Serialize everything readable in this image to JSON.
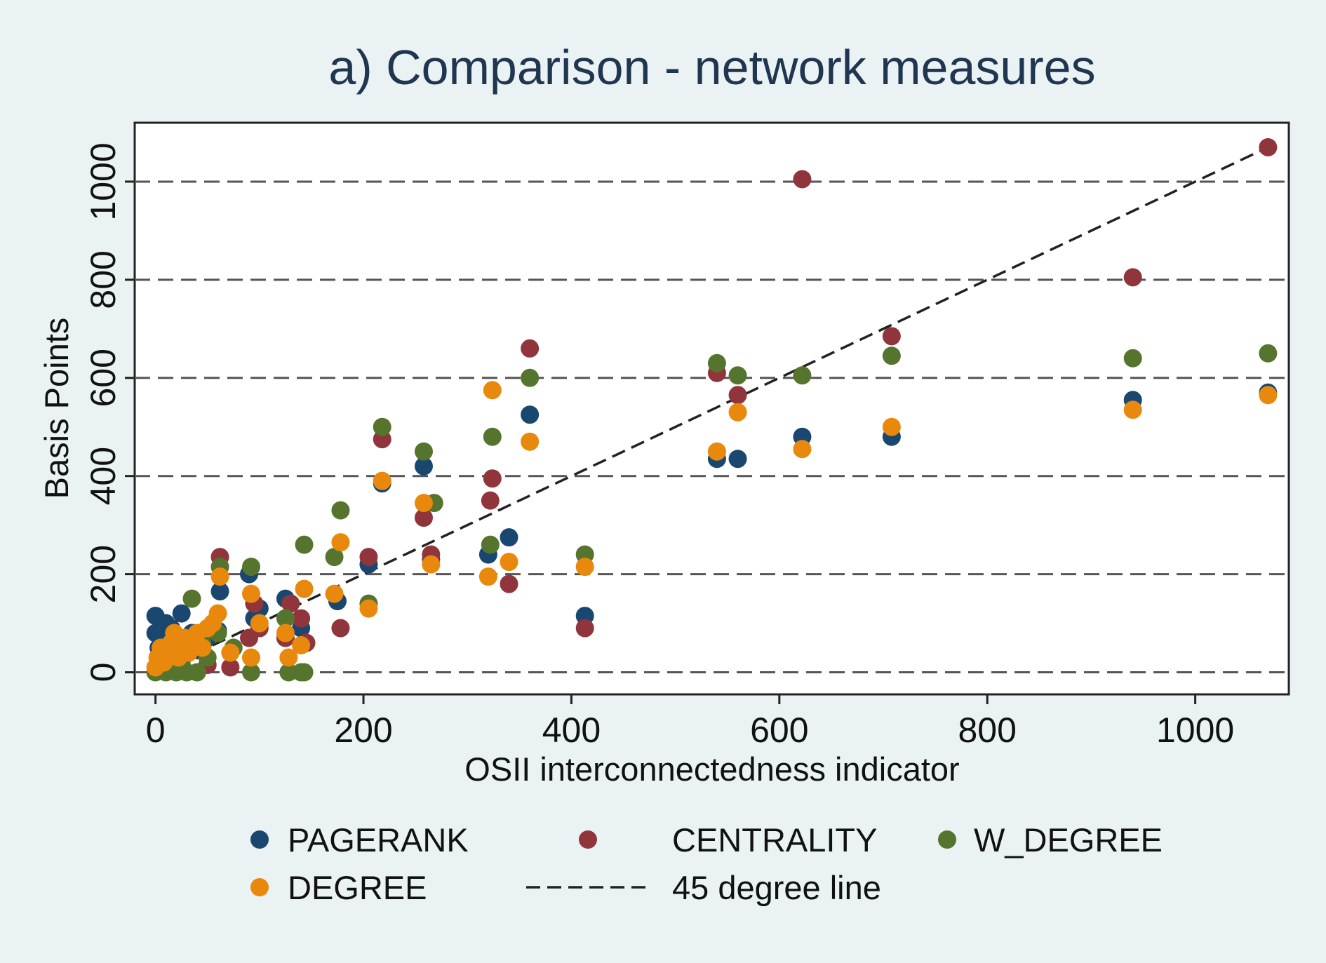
{
  "chart_data": {
    "type": "scatter",
    "title": "a) Comparison - network measures",
    "xlabel": "OSII interconnectedness indicator",
    "ylabel": "Basis Points",
    "xlim": [
      -20,
      1090
    ],
    "ylim": [
      -45,
      1120
    ],
    "xticks": [
      0,
      200,
      400,
      600,
      800,
      1000
    ],
    "yticks": [
      0,
      200,
      400,
      600,
      800,
      1000
    ],
    "grid": "horizontal dashed",
    "legend_position": "bottom",
    "reference_line": {
      "name": "45 degree line",
      "x": [
        0,
        1070
      ],
      "y": [
        0,
        1070
      ]
    },
    "series": [
      {
        "name": "PAGERANK",
        "color": "#1a476f",
        "points": [
          [
            0,
            115
          ],
          [
            0,
            80
          ],
          [
            3,
            50
          ],
          [
            5,
            30
          ],
          [
            8,
            60
          ],
          [
            10,
            100
          ],
          [
            15,
            90
          ],
          [
            20,
            70
          ],
          [
            25,
            120
          ],
          [
            30,
            60
          ],
          [
            35,
            80
          ],
          [
            40,
            45
          ],
          [
            45,
            55
          ],
          [
            50,
            70
          ],
          [
            60,
            85
          ],
          [
            62,
            165
          ],
          [
            90,
            200
          ],
          [
            95,
            110
          ],
          [
            100,
            130
          ],
          [
            125,
            150
          ],
          [
            140,
            90
          ],
          [
            175,
            145
          ],
          [
            205,
            220
          ],
          [
            218,
            385
          ],
          [
            258,
            420
          ],
          [
            265,
            230
          ],
          [
            320,
            240
          ],
          [
            340,
            275
          ],
          [
            360,
            525
          ],
          [
            413,
            115
          ],
          [
            540,
            435
          ],
          [
            560,
            435
          ],
          [
            622,
            480
          ],
          [
            708,
            480
          ],
          [
            940,
            555
          ],
          [
            1070,
            570
          ]
        ]
      },
      {
        "name": "CENTRALITY",
        "color": "#90353b",
        "points": [
          [
            10,
            20
          ],
          [
            20,
            40
          ],
          [
            30,
            60
          ],
          [
            40,
            70
          ],
          [
            50,
            15
          ],
          [
            62,
            235
          ],
          [
            72,
            10
          ],
          [
            90,
            70
          ],
          [
            95,
            140
          ],
          [
            100,
            90
          ],
          [
            125,
            70
          ],
          [
            130,
            140
          ],
          [
            140,
            110
          ],
          [
            145,
            60
          ],
          [
            178,
            90
          ],
          [
            205,
            235
          ],
          [
            218,
            475
          ],
          [
            258,
            315
          ],
          [
            265,
            240
          ],
          [
            322,
            350
          ],
          [
            324,
            395
          ],
          [
            340,
            180
          ],
          [
            360,
            660
          ],
          [
            413,
            90
          ],
          [
            540,
            610
          ],
          [
            560,
            565
          ],
          [
            622,
            1005
          ],
          [
            708,
            685
          ],
          [
            940,
            805
          ],
          [
            1070,
            1070
          ]
        ]
      },
      {
        "name": "W_DEGREE",
        "color": "#55752f",
        "points": [
          [
            0,
            0
          ],
          [
            5,
            5
          ],
          [
            10,
            0
          ],
          [
            15,
            10
          ],
          [
            20,
            0
          ],
          [
            25,
            20
          ],
          [
            30,
            0
          ],
          [
            35,
            150
          ],
          [
            40,
            0
          ],
          [
            45,
            60
          ],
          [
            50,
            30
          ],
          [
            60,
            80
          ],
          [
            62,
            215
          ],
          [
            75,
            50
          ],
          [
            92,
            0
          ],
          [
            92,
            215
          ],
          [
            125,
            110
          ],
          [
            128,
            0
          ],
          [
            140,
            0
          ],
          [
            143,
            0
          ],
          [
            143,
            260
          ],
          [
            172,
            235
          ],
          [
            178,
            330
          ],
          [
            205,
            140
          ],
          [
            218,
            500
          ],
          [
            258,
            450
          ],
          [
            268,
            345
          ],
          [
            322,
            260
          ],
          [
            324,
            480
          ],
          [
            360,
            600
          ],
          [
            413,
            240
          ],
          [
            540,
            630
          ],
          [
            560,
            605
          ],
          [
            622,
            605
          ],
          [
            708,
            645
          ],
          [
            940,
            640
          ],
          [
            1070,
            650
          ]
        ]
      },
      {
        "name": "DEGREE",
        "color": "#e8880c",
        "points": [
          [
            0,
            10
          ],
          [
            2,
            30
          ],
          [
            5,
            50
          ],
          [
            8,
            20
          ],
          [
            12,
            40
          ],
          [
            15,
            60
          ],
          [
            18,
            80
          ],
          [
            22,
            30
          ],
          [
            25,
            50
          ],
          [
            28,
            70
          ],
          [
            32,
            40
          ],
          [
            35,
            60
          ],
          [
            40,
            80
          ],
          [
            45,
            50
          ],
          [
            50,
            90
          ],
          [
            55,
            100
          ],
          [
            60,
            120
          ],
          [
            62,
            195
          ],
          [
            72,
            40
          ],
          [
            92,
            30
          ],
          [
            92,
            160
          ],
          [
            100,
            100
          ],
          [
            125,
            80
          ],
          [
            128,
            30
          ],
          [
            140,
            55
          ],
          [
            143,
            170
          ],
          [
            172,
            160
          ],
          [
            178,
            265
          ],
          [
            205,
            130
          ],
          [
            218,
            390
          ],
          [
            258,
            345
          ],
          [
            265,
            220
          ],
          [
            320,
            195
          ],
          [
            324,
            575
          ],
          [
            340,
            225
          ],
          [
            360,
            470
          ],
          [
            413,
            215
          ],
          [
            540,
            450
          ],
          [
            560,
            530
          ],
          [
            622,
            455
          ],
          [
            708,
            500
          ],
          [
            940,
            535
          ],
          [
            1070,
            565
          ]
        ]
      }
    ]
  }
}
